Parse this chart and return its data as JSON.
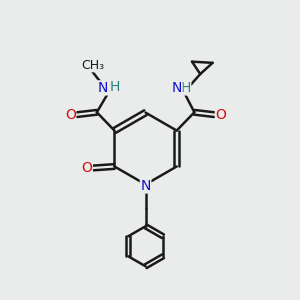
{
  "bg_color": "#eaecec",
  "bond_color": "#1a1a1a",
  "bond_width": 1.8,
  "atom_colors": {
    "C": "#1a1a1a",
    "N": "#1010cc",
    "O": "#cc1010",
    "H": "#2a8080"
  },
  "font_size": 10,
  "fig_size": [
    3.0,
    3.0
  ],
  "dpi": 100,
  "xlim": [
    0,
    10
  ],
  "ylim": [
    0,
    10
  ]
}
